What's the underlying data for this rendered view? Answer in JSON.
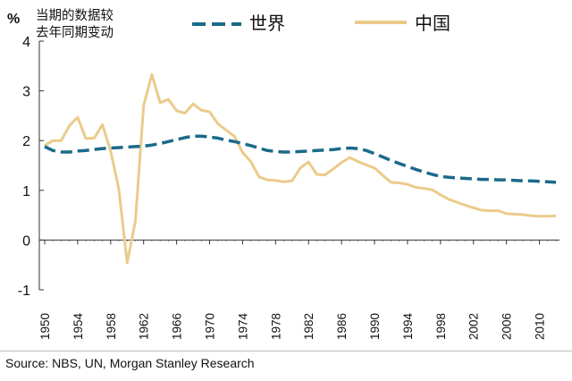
{
  "chart_data": {
    "type": "line",
    "unit_label": "%",
    "ylabel_lines": [
      "当期的数据较",
      "去年同期变动"
    ],
    "ylim": [
      -1,
      4
    ],
    "y_ticks": [
      -1,
      0,
      1,
      2,
      3,
      4
    ],
    "xlim": [
      1950,
      2012
    ],
    "x_ticks": [
      1950,
      1954,
      1958,
      1962,
      1966,
      1970,
      1974,
      1978,
      1982,
      1986,
      1990,
      1994,
      1998,
      2002,
      2006,
      2010
    ],
    "grid": false,
    "legend_position": "top",
    "series": [
      {
        "name": "世界",
        "color": "#1a6a8a",
        "style": "dashed",
        "points": [
          [
            1950,
            1.88
          ],
          [
            1951,
            1.8
          ],
          [
            1952,
            1.77
          ],
          [
            1953,
            1.77
          ],
          [
            1954,
            1.79
          ],
          [
            1955,
            1.8
          ],
          [
            1956,
            1.82
          ],
          [
            1957,
            1.84
          ],
          [
            1958,
            1.85
          ],
          [
            1959,
            1.86
          ],
          [
            1960,
            1.87
          ],
          [
            1961,
            1.88
          ],
          [
            1962,
            1.89
          ],
          [
            1963,
            1.91
          ],
          [
            1964,
            1.94
          ],
          [
            1965,
            1.98
          ],
          [
            1966,
            2.02
          ],
          [
            1967,
            2.06
          ],
          [
            1968,
            2.09
          ],
          [
            1969,
            2.09
          ],
          [
            1970,
            2.07
          ],
          [
            1971,
            2.05
          ],
          [
            1972,
            2.01
          ],
          [
            1973,
            1.98
          ],
          [
            1974,
            1.94
          ],
          [
            1975,
            1.9
          ],
          [
            1976,
            1.85
          ],
          [
            1977,
            1.8
          ],
          [
            1978,
            1.78
          ],
          [
            1979,
            1.77
          ],
          [
            1980,
            1.77
          ],
          [
            1981,
            1.78
          ],
          [
            1982,
            1.79
          ],
          [
            1983,
            1.8
          ],
          [
            1984,
            1.81
          ],
          [
            1985,
            1.82
          ],
          [
            1986,
            1.84
          ],
          [
            1987,
            1.85
          ],
          [
            1988,
            1.84
          ],
          [
            1989,
            1.8
          ],
          [
            1990,
            1.74
          ],
          [
            1991,
            1.67
          ],
          [
            1992,
            1.6
          ],
          [
            1993,
            1.54
          ],
          [
            1994,
            1.48
          ],
          [
            1995,
            1.42
          ],
          [
            1996,
            1.37
          ],
          [
            1997,
            1.32
          ],
          [
            1998,
            1.28
          ],
          [
            1999,
            1.26
          ],
          [
            2000,
            1.25
          ],
          [
            2001,
            1.24
          ],
          [
            2002,
            1.23
          ],
          [
            2003,
            1.22
          ],
          [
            2004,
            1.22
          ],
          [
            2005,
            1.21
          ],
          [
            2006,
            1.21
          ],
          [
            2007,
            1.2
          ],
          [
            2008,
            1.19
          ],
          [
            2009,
            1.19
          ],
          [
            2010,
            1.18
          ],
          [
            2011,
            1.17
          ],
          [
            2012,
            1.16
          ]
        ]
      },
      {
        "name": "中国",
        "color": "#ebcb8b",
        "style": "solid",
        "points": [
          [
            1950,
            1.9
          ],
          [
            1951,
            2.0
          ],
          [
            1952,
            2.0
          ],
          [
            1953,
            2.3
          ],
          [
            1954,
            2.47
          ],
          [
            1955,
            2.04
          ],
          [
            1956,
            2.05
          ],
          [
            1957,
            2.32
          ],
          [
            1958,
            1.79
          ],
          [
            1959,
            1.02
          ],
          [
            1960,
            -0.46
          ],
          [
            1961,
            0.38
          ],
          [
            1962,
            2.7
          ],
          [
            1963,
            3.33
          ],
          [
            1964,
            2.76
          ],
          [
            1965,
            2.83
          ],
          [
            1966,
            2.6
          ],
          [
            1967,
            2.55
          ],
          [
            1968,
            2.74
          ],
          [
            1969,
            2.61
          ],
          [
            1970,
            2.58
          ],
          [
            1971,
            2.34
          ],
          [
            1972,
            2.21
          ],
          [
            1973,
            2.09
          ],
          [
            1974,
            1.76
          ],
          [
            1975,
            1.58
          ],
          [
            1976,
            1.27
          ],
          [
            1977,
            1.21
          ],
          [
            1978,
            1.2
          ],
          [
            1979,
            1.17
          ],
          [
            1980,
            1.19
          ],
          [
            1981,
            1.45
          ],
          [
            1982,
            1.57
          ],
          [
            1983,
            1.32
          ],
          [
            1984,
            1.31
          ],
          [
            1985,
            1.43
          ],
          [
            1986,
            1.56
          ],
          [
            1987,
            1.66
          ],
          [
            1988,
            1.58
          ],
          [
            1989,
            1.51
          ],
          [
            1990,
            1.45
          ],
          [
            1991,
            1.3
          ],
          [
            1992,
            1.16
          ],
          [
            1993,
            1.15
          ],
          [
            1994,
            1.12
          ],
          [
            1995,
            1.06
          ],
          [
            1996,
            1.04
          ],
          [
            1997,
            1.01
          ],
          [
            1998,
            0.91
          ],
          [
            1999,
            0.82
          ],
          [
            2000,
            0.76
          ],
          [
            2001,
            0.7
          ],
          [
            2002,
            0.65
          ],
          [
            2003,
            0.6
          ],
          [
            2004,
            0.59
          ],
          [
            2005,
            0.59
          ],
          [
            2006,
            0.53
          ],
          [
            2007,
            0.52
          ],
          [
            2008,
            0.51
          ],
          [
            2009,
            0.49
          ],
          [
            2010,
            0.48
          ],
          [
            2011,
            0.48
          ],
          [
            2012,
            0.49
          ]
        ]
      }
    ],
    "source": "Source: NBS, UN, Morgan Stanley Research"
  }
}
